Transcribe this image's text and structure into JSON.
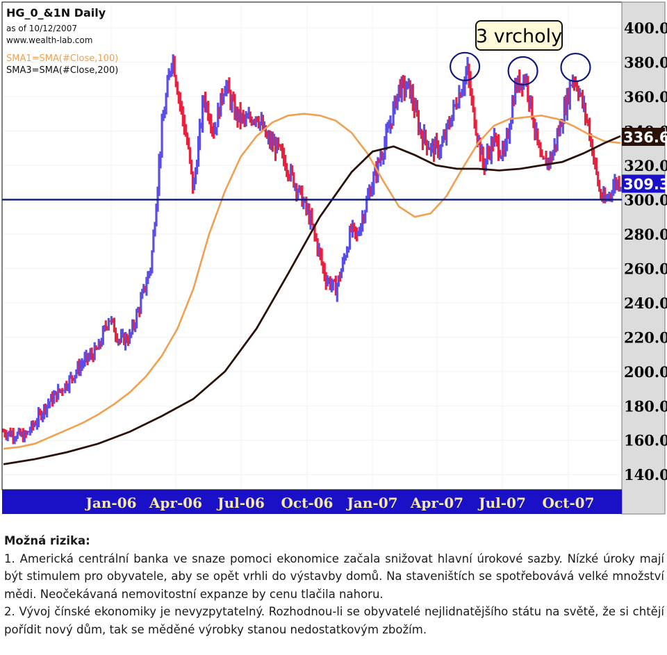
{
  "header": {
    "title": "HG_0_&1N Daily",
    "asof": "as of 10/12/2007",
    "site": "www.wealth-lab.com",
    "sma1": "SMA1=SMA(#Close,100)",
    "sma3": "SMA3=SMA(#Close,200)"
  },
  "callout": {
    "text": "3 vrcholy"
  },
  "colors": {
    "up_bar": "#5a4ee8",
    "down_bar": "#e8203c",
    "sma100": "#f0a050",
    "sma200": "#2a1208",
    "support_line": "#0a1a7a",
    "axis_bg": "#1a10c8",
    "right_axis_bg": "#dcdcdc",
    "circle": "#101880"
  },
  "chart_data": {
    "type": "candlestick",
    "y_ticks": [
      "400.0",
      "380.0",
      "360.0",
      "340.0",
      "320.0",
      "300.0",
      "280.0",
      "260.0",
      "240.0",
      "220.0",
      "200.0",
      "180.0",
      "160.0",
      "140.0"
    ],
    "y_tick_values": [
      400,
      380,
      360,
      340,
      320,
      300,
      280,
      260,
      240,
      220,
      200,
      180,
      160,
      140
    ],
    "ylim": [
      132,
      413
    ],
    "x_ticks": [
      "Jan-06",
      "Apr-06",
      "Jul-06",
      "Oct-06",
      "Jan-07",
      "Apr-07",
      "Jul-07",
      "Oct-07"
    ],
    "last_price_sma200": "336.6",
    "last_price_close": "309.3",
    "support_level": 300,
    "sma100_path": [
      [
        0,
        155
      ],
      [
        3,
        156
      ],
      [
        6,
        158
      ],
      [
        9,
        162
      ],
      [
        12,
        166
      ],
      [
        15,
        170
      ],
      [
        18,
        175
      ],
      [
        21,
        181
      ],
      [
        24,
        188
      ],
      [
        27,
        197
      ],
      [
        30,
        209
      ],
      [
        33,
        225
      ],
      [
        36,
        248
      ],
      [
        39,
        280
      ],
      [
        42,
        305
      ],
      [
        45,
        325
      ],
      [
        48,
        337
      ],
      [
        51,
        345
      ],
      [
        54,
        349
      ],
      [
        57,
        350
      ],
      [
        60,
        349
      ],
      [
        63,
        346
      ],
      [
        66,
        339
      ],
      [
        69,
        327
      ],
      [
        72,
        311
      ],
      [
        75,
        296
      ],
      [
        78,
        290
      ],
      [
        81,
        292
      ],
      [
        84,
        302
      ],
      [
        87,
        318
      ],
      [
        90,
        333
      ],
      [
        93,
        343
      ],
      [
        96,
        347
      ],
      [
        99,
        348
      ],
      [
        102,
        349
      ],
      [
        105,
        347
      ],
      [
        108,
        343
      ],
      [
        111,
        338
      ],
      [
        114,
        334
      ],
      [
        117,
        333
      ]
    ],
    "sma200_path": [
      [
        0,
        146
      ],
      [
        6,
        149
      ],
      [
        12,
        153
      ],
      [
        18,
        158
      ],
      [
        24,
        165
      ],
      [
        30,
        174
      ],
      [
        36,
        184
      ],
      [
        42,
        200
      ],
      [
        48,
        225
      ],
      [
        54,
        257
      ],
      [
        60,
        290
      ],
      [
        66,
        316
      ],
      [
        70,
        328
      ],
      [
        74,
        331
      ],
      [
        78,
        326
      ],
      [
        82,
        320
      ],
      [
        86,
        318
      ],
      [
        90,
        318
      ],
      [
        94,
        317
      ],
      [
        98,
        318
      ],
      [
        102,
        320
      ],
      [
        106,
        322
      ],
      [
        110,
        327
      ],
      [
        114,
        333
      ],
      [
        117,
        337
      ]
    ],
    "peaks": [
      {
        "x": 87.5,
        "y": 377.5
      },
      {
        "x": 98.5,
        "y": 375
      },
      {
        "x": 108.5,
        "y": 377
      }
    ]
  },
  "notes": {
    "heading": "Možná rizika:",
    "item1": "1. Americká centrální banka ve snaze pomoci ekonomice začala snižovat hlavní úrokové sazby. Nízké úroky mají být stimulem pro obyvatele, aby se opět vrhli do výstavby domů. Na staveništích se spotřebovává velké množství mědi. Neočekávaná nemovitostní expanze by cenu tlačila nahoru.",
    "item2": "2. Vývoj čínské ekonomiky je nevyzpytatelný. Rozhodnou-li se obyvatelé nejlidnatějšího státu na světě, že si chtějí pořídit nový dům, tak se měděné výrobky stanou nedostatkovým zbožím."
  }
}
